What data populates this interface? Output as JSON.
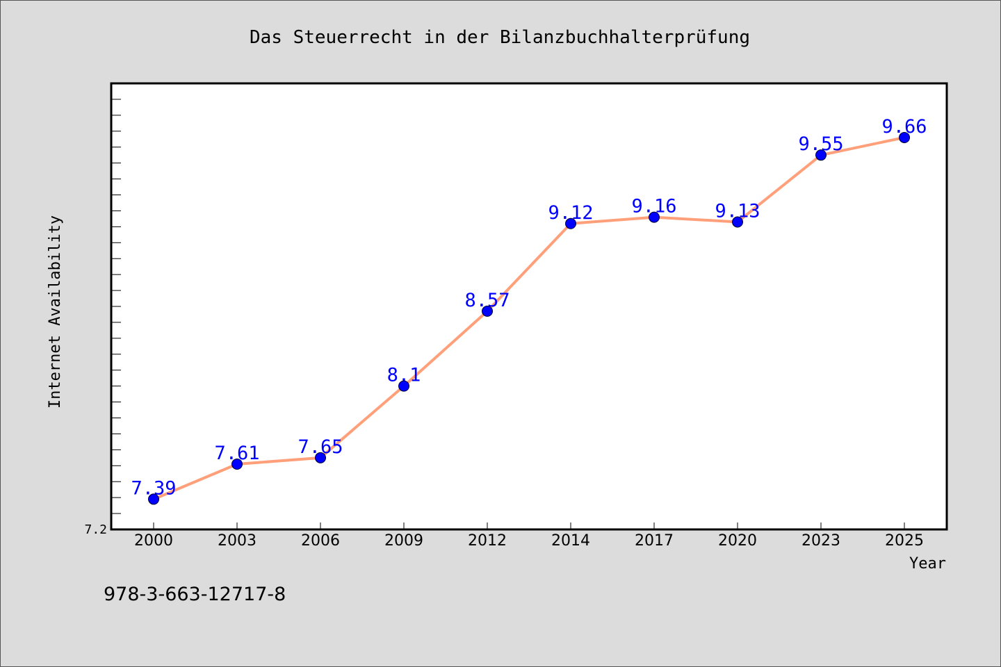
{
  "chart_data": {
    "type": "line",
    "title": "Das Steuerrecht in der Bilanzbuchhalterprüfung",
    "xlabel": "Year",
    "ylabel": "Internet Availability",
    "categories": [
      "2000",
      "2003",
      "2006",
      "2009",
      "2012",
      "2014",
      "2017",
      "2020",
      "2023",
      "2025"
    ],
    "series": [
      {
        "values": [
          7.39,
          7.61,
          7.65,
          8.1,
          8.57,
          9.12,
          9.16,
          9.13,
          9.55,
          9.66
        ],
        "data_labels": [
          "7.39",
          "7.61",
          "7.65",
          "8.1",
          "8.57",
          "9.12",
          "9.16",
          "9.13",
          "9.55",
          "9.66"
        ]
      }
    ],
    "ytick_labels": [
      "7.2"
    ],
    "ylim": [
      7.2,
      10.0
    ],
    "grid": false,
    "line_color": "#ffa07a",
    "marker_color": "#0000ff",
    "label_color": "#0000ff",
    "plot_background": "#ffffff",
    "figure_background": "#dcdcdc"
  },
  "footer_text": "978-3-663-12717-8"
}
